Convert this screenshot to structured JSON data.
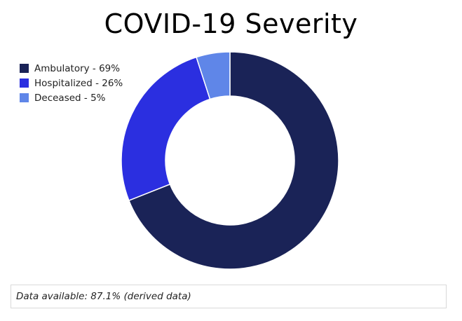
{
  "chart_data": {
    "type": "pie",
    "title": "COVID-19 Severity",
    "categories": [
      "Ambulatory",
      "Hospitalized",
      "Deceased"
    ],
    "values": [
      69,
      26,
      5
    ],
    "unit": "%",
    "donut": true,
    "legend_placement": "top-left",
    "legend_labels": [
      "Ambulatory - 69%",
      "Hospitalized - 26%",
      "Deceased - 5%"
    ],
    "colors": [
      "#1a2357",
      "#2b2fe0",
      "#5f86e8"
    ]
  },
  "footer": {
    "note": "Data available: 87.1% (derived data)"
  }
}
